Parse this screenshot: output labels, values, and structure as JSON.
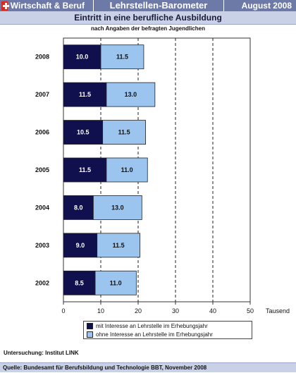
{
  "header": {
    "brand": "Wirtschaft & Beruf",
    "title": "Lehrstellen-Barometer",
    "date": "August 2008"
  },
  "subheader": "Eintritt in eine berufliche Ausbildung",
  "subtitle": "nach Angaben der befragten Jugendlichen",
  "survey_note": "Untersuchung: Institut LINK",
  "source": "Quelle: Bundesamt für Berufsbildung und Technologie BBT, November 2008",
  "colors": {
    "with_interest": "#10104f",
    "without_interest": "#9bc5ef",
    "header": "#6d7aa8"
  },
  "chart_data": {
    "type": "bar",
    "orientation": "horizontal",
    "stacked": true,
    "categories": [
      "2008",
      "2007",
      "2006",
      "2005",
      "2004",
      "2003",
      "2002"
    ],
    "series": [
      {
        "name": "mit Interesse an Lehrstelle im Erhebungsjahr",
        "values": [
          10.0,
          11.5,
          10.5,
          11.5,
          8.0,
          9.0,
          8.5
        ]
      },
      {
        "name": "ohne Interesse an Lehrstelle im Erhebungsjahr",
        "values": [
          11.5,
          13.0,
          11.5,
          11.0,
          13.0,
          11.5,
          11.0
        ]
      }
    ],
    "value_labels": [
      [
        "10.0",
        "11.5",
        "10.5",
        "11.5",
        "8.0",
        "9.0",
        "8.5"
      ],
      [
        "11.5",
        "13.0",
        "11.5",
        "11.0",
        "13.0",
        "11.5",
        "11.0"
      ]
    ],
    "xlim": [
      0,
      50
    ],
    "xticks": [
      "0",
      "10",
      "20",
      "30",
      "40",
      "50"
    ],
    "xunit": "Tausend",
    "grid": "vertical dashed",
    "legend_position": "bottom"
  }
}
